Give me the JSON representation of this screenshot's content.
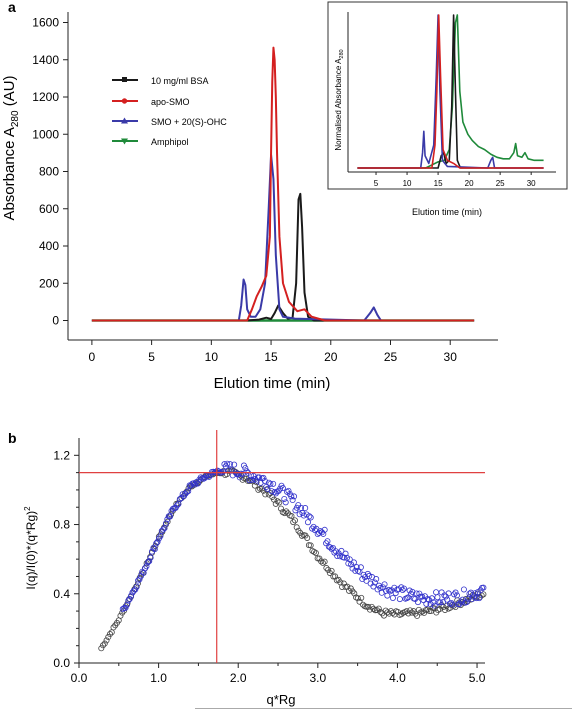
{
  "figure": {
    "panel_a_label": "a",
    "panel_b_label": "b"
  },
  "chart_data": [
    {
      "id": "a-main",
      "type": "line",
      "title": "",
      "xlabel": "Elution time (min)",
      "ylabel_prefix": "Absorbance A",
      "ylabel_sub": "280",
      "ylabel_suffix": " (AU)",
      "xlim": [
        -2,
        34
      ],
      "ylim": [
        -100,
        1650
      ],
      "xticks": [
        0,
        5,
        10,
        15,
        20,
        25,
        30
      ],
      "yticks": [
        0,
        200,
        400,
        600,
        800,
        1000,
        1200,
        1400,
        1600
      ],
      "grid": false,
      "legend_position": "top-left",
      "series": [
        {
          "name": "10 mg/ml BSA",
          "color": "#1a1a1a",
          "points": [
            [
              0,
              0
            ],
            [
              13,
              0
            ],
            [
              14,
              5
            ],
            [
              14.6,
              15
            ],
            [
              15,
              8
            ],
            [
              15.3,
              40
            ],
            [
              15.6,
              80
            ],
            [
              16,
              40
            ],
            [
              16.4,
              10
            ],
            [
              16.8,
              15
            ],
            [
              17.1,
              200
            ],
            [
              17.3,
              650
            ],
            [
              17.45,
              680
            ],
            [
              17.6,
              500
            ],
            [
              17.8,
              150
            ],
            [
              18.1,
              20
            ],
            [
              18.6,
              0
            ],
            [
              32,
              0
            ]
          ]
        },
        {
          "name": "apo-SMO",
          "color": "#d42020",
          "points": [
            [
              0,
              0
            ],
            [
              13,
              0
            ],
            [
              13.4,
              60
            ],
            [
              13.8,
              130
            ],
            [
              14.2,
              180
            ],
            [
              14.6,
              240
            ],
            [
              14.9,
              450
            ],
            [
              15.0,
              900
            ],
            [
              15.1,
              1280
            ],
            [
              15.2,
              1465
            ],
            [
              15.3,
              1400
            ],
            [
              15.4,
              1200
            ],
            [
              15.5,
              900
            ],
            [
              15.7,
              450
            ],
            [
              16,
              200
            ],
            [
              16.5,
              100
            ],
            [
              17.2,
              50
            ],
            [
              17.8,
              60
            ],
            [
              18.4,
              20
            ],
            [
              19.5,
              0
            ],
            [
              32,
              0
            ]
          ]
        },
        {
          "name": "SMO + 20(S)-OHC",
          "color": "#3a3aa8",
          "points": [
            [
              0,
              0
            ],
            [
              12.3,
              0
            ],
            [
              12.5,
              80
            ],
            [
              12.7,
              220
            ],
            [
              12.85,
              190
            ],
            [
              13,
              60
            ],
            [
              13.3,
              20
            ],
            [
              13.7,
              20
            ],
            [
              14.1,
              60
            ],
            [
              14.5,
              200
            ],
            [
              14.8,
              600
            ],
            [
              15.0,
              890
            ],
            [
              15.2,
              760
            ],
            [
              15.4,
              350
            ],
            [
              15.7,
              60
            ],
            [
              16,
              20
            ],
            [
              17,
              10
            ],
            [
              22.8,
              0
            ],
            [
              23.3,
              40
            ],
            [
              23.6,
              70
            ],
            [
              23.9,
              30
            ],
            [
              24.2,
              0
            ],
            [
              32,
              0
            ]
          ]
        },
        {
          "name": "Amphipol",
          "color": "#1f8a3a",
          "points": [
            [
              0,
              0
            ],
            [
              32,
              0
            ]
          ]
        }
      ]
    },
    {
      "id": "a-inset",
      "type": "line",
      "title": "",
      "xlabel": "Elution time (min)",
      "ylabel_prefix": "Normalised Absorbance A",
      "ylabel_sub": "280",
      "ylabel_suffix": "",
      "xlim": [
        0,
        34
      ],
      "ylim": [
        0,
        1.05
      ],
      "xticks": [
        5,
        10,
        15,
        20,
        25,
        30
      ],
      "yticks": [],
      "grid": false,
      "series": [
        {
          "name": "10 mg/ml BSA",
          "color": "#1a1a1a",
          "points": [
            [
              2,
              0
            ],
            [
              15,
              0
            ],
            [
              15.5,
              0.08
            ],
            [
              15.9,
              0.1
            ],
            [
              16.3,
              0.03
            ],
            [
              16.8,
              0.05
            ],
            [
              17.2,
              0.4
            ],
            [
              17.5,
              1.0
            ],
            [
              17.8,
              0.5
            ],
            [
              18.1,
              0.05
            ],
            [
              18.6,
              0
            ],
            [
              32,
              0
            ]
          ]
        },
        {
          "name": "apo-SMO",
          "color": "#d42020",
          "points": [
            [
              2,
              0
            ],
            [
              14,
              0
            ],
            [
              14.5,
              0.15
            ],
            [
              14.8,
              0.5
            ],
            [
              15.1,
              1.0
            ],
            [
              15.4,
              0.6
            ],
            [
              15.8,
              0.12
            ],
            [
              16.5,
              0.05
            ],
            [
              17.5,
              0.03
            ],
            [
              18.5,
              0
            ],
            [
              32,
              0
            ]
          ]
        },
        {
          "name": "SMO + 20(S)-OHC",
          "color": "#3a3aa8",
          "points": [
            [
              2,
              0
            ],
            [
              12.2,
              0
            ],
            [
              12.5,
              0.1
            ],
            [
              12.7,
              0.24
            ],
            [
              12.9,
              0.08
            ],
            [
              13.5,
              0.03
            ],
            [
              14.3,
              0.15
            ],
            [
              14.7,
              0.6
            ],
            [
              15.0,
              1.0
            ],
            [
              15.3,
              0.5
            ],
            [
              15.7,
              0.05
            ],
            [
              16.5,
              0.01
            ],
            [
              23,
              0
            ],
            [
              23.5,
              0.05
            ],
            [
              23.8,
              0.07
            ],
            [
              24.1,
              0
            ],
            [
              32,
              0
            ]
          ]
        },
        {
          "name": "Amphipol",
          "color": "#1f8a3a",
          "points": [
            [
              2,
              0
            ],
            [
              13,
              0
            ],
            [
              14,
              0.02
            ],
            [
              15,
              0.04
            ],
            [
              16,
              0.05
            ],
            [
              16.8,
              0.12
            ],
            [
              17.3,
              0.4
            ],
            [
              17.8,
              0.95
            ],
            [
              18.1,
              1.0
            ],
            [
              18.5,
              0.5
            ],
            [
              19,
              0.3
            ],
            [
              19.8,
              0.22
            ],
            [
              20.5,
              0.18
            ],
            [
              21.5,
              0.14
            ],
            [
              22.5,
              0.12
            ],
            [
              23.5,
              0.09
            ],
            [
              24.5,
              0.07
            ],
            [
              25.5,
              0.06
            ],
            [
              26.5,
              0.06
            ],
            [
              27.2,
              0.1
            ],
            [
              27.5,
              0.16
            ],
            [
              27.8,
              0.08
            ],
            [
              28.5,
              0.07
            ],
            [
              29,
              0.1
            ],
            [
              29.5,
              0.06
            ],
            [
              30.5,
              0.05
            ],
            [
              32,
              0.05
            ]
          ]
        }
      ]
    },
    {
      "id": "b",
      "type": "scatter",
      "title": "",
      "xlabel": "q*Rg",
      "ylabel": "I(q)/I(0)*(q*Rg)",
      "ylabel_sup": "2",
      "xlim": [
        0,
        5.1
      ],
      "ylim": [
        0,
        1.3
      ],
      "xticks": [
        0.0,
        1.0,
        2.0,
        3.0,
        4.0,
        5.0
      ],
      "xtick_labels": [
        "0.0",
        "1.0",
        "2.0",
        "3.0",
        "4.0",
        "5.0"
      ],
      "yticks": [
        0.0,
        0.4,
        0.8,
        1.2
      ],
      "ytick_labels": [
        "0.0",
        "0.4",
        "0.8",
        "1.2"
      ],
      "grid": false,
      "reference_lines": {
        "x": 1.73,
        "y": 1.1,
        "color": "#e04040"
      },
      "series": [
        {
          "name": "",
          "color": "#444444",
          "x_range": [
            0.28,
            5.08
          ],
          "n_points": 220,
          "noise": 0.012,
          "profile": [
            [
              0.28,
              0.085
            ],
            [
              0.5,
              0.25
            ],
            [
              0.8,
              0.52
            ],
            [
              1.0,
              0.72
            ],
            [
              1.2,
              0.9
            ],
            [
              1.4,
              1.02
            ],
            [
              1.6,
              1.08
            ],
            [
              1.75,
              1.1
            ],
            [
              1.9,
              1.1
            ],
            [
              2.1,
              1.07
            ],
            [
              2.4,
              0.97
            ],
            [
              2.7,
              0.82
            ],
            [
              3.0,
              0.62
            ],
            [
              3.3,
              0.46
            ],
            [
              3.6,
              0.34
            ],
            [
              3.8,
              0.29
            ],
            [
              4.0,
              0.28
            ],
            [
              4.3,
              0.29
            ],
            [
              4.6,
              0.32
            ],
            [
              4.9,
              0.37
            ],
            [
              5.08,
              0.4
            ]
          ]
        },
        {
          "name": "",
          "color": "#3333cc",
          "x_range": [
            0.55,
            5.08
          ],
          "n_points": 260,
          "noise": 0.025,
          "profile": [
            [
              0.55,
              0.3
            ],
            [
              0.8,
              0.52
            ],
            [
              1.0,
              0.72
            ],
            [
              1.2,
              0.9
            ],
            [
              1.4,
              1.02
            ],
            [
              1.6,
              1.08
            ],
            [
              1.75,
              1.11
            ],
            [
              1.9,
              1.12
            ],
            [
              2.1,
              1.1
            ],
            [
              2.4,
              1.04
            ],
            [
              2.7,
              0.93
            ],
            [
              3.0,
              0.78
            ],
            [
              3.3,
              0.62
            ],
            [
              3.6,
              0.5
            ],
            [
              3.9,
              0.42
            ],
            [
              4.2,
              0.38
            ],
            [
              4.5,
              0.37
            ],
            [
              4.8,
              0.38
            ],
            [
              5.08,
              0.42
            ]
          ]
        }
      ]
    }
  ]
}
